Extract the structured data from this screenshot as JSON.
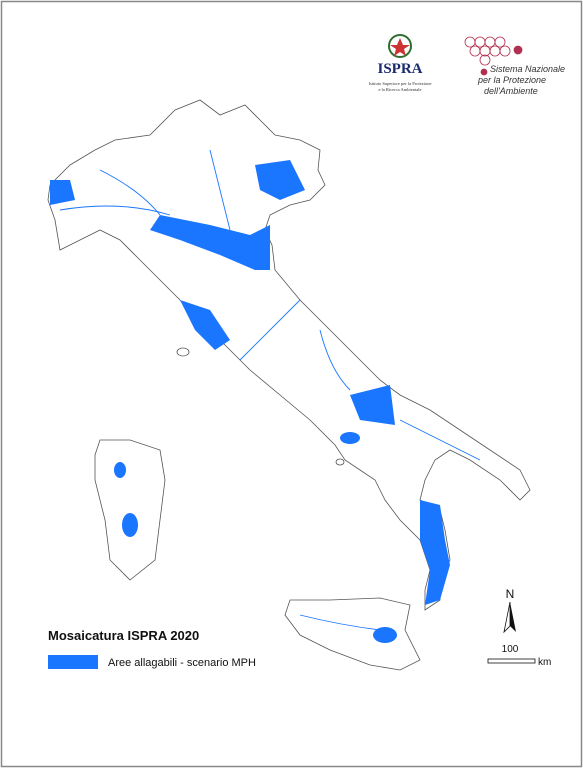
{
  "header": {
    "logo_ispra": {
      "title": "ISPRA",
      "subtitle_lines": [
        "Istituto Superiore per la Protezione",
        "e la Ricerca Ambientale"
      ]
    },
    "logo_snpa": {
      "lines": [
        "Sistema Nazionale",
        "per la Protezione",
        "dell'Ambiente"
      ]
    }
  },
  "legend": {
    "title": "Mosaicatura ISPRA 2020",
    "items": [
      {
        "label": "Aree allagabili - scenario MPH",
        "color": "#1a75ff"
      }
    ]
  },
  "north_arrow": {
    "label": "N"
  },
  "scale_bar": {
    "value": 100,
    "unit": "km"
  }
}
